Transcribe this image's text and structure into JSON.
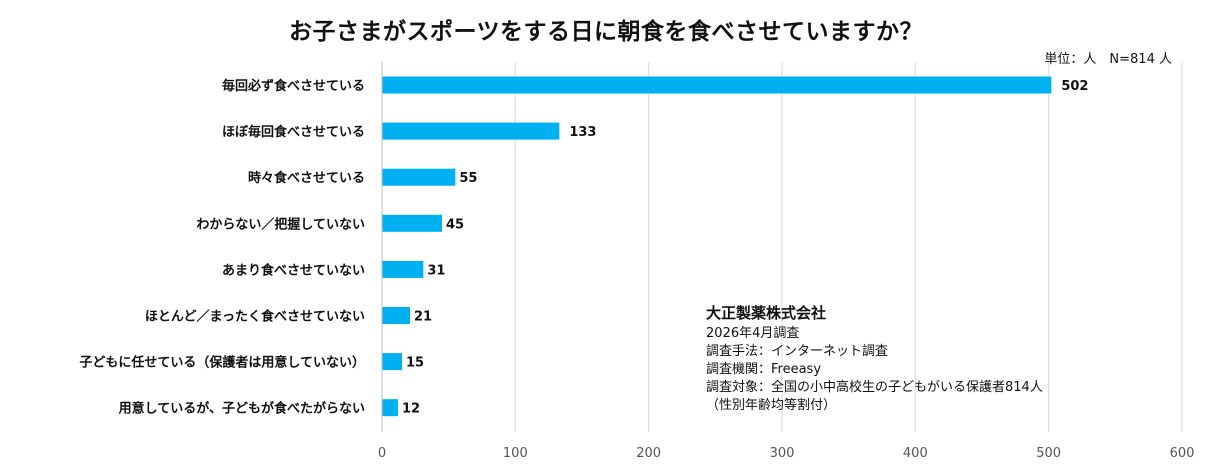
{
  "chart_data": {
    "type": "bar",
    "orientation": "horizontal",
    "title": "お子さまがスポーツをする日に朝食を食べさせていますか？",
    "unit_note": "単位：人　N=814 人",
    "categories": [
      "毎回必ず食べさせている",
      "ほぼ毎回食べさせている",
      "時々食べさせている",
      "わからない／把握していない",
      "あまり食べさせていない",
      "ほとんど／まったく食べさせていない",
      "子どもに任せている（保護者は用意していない）",
      "用意しているが、子どもが食べたがらない"
    ],
    "values": [
      502,
      133,
      55,
      45,
      31,
      21,
      15,
      12
    ],
    "xlim": [
      0,
      600
    ],
    "xticks": [
      "0",
      "100",
      "200",
      "300",
      "400",
      "500",
      "600"
    ],
    "grid": true,
    "bar_color": "#00b0f0"
  },
  "note": {
    "company": "大正製薬株式会社",
    "lines": [
      "2026年4月調査",
      "調査手法：インターネット調査",
      "調査機関：Freeasy",
      "調査対象：全国の小中高校生の子どもがいる保護者814人",
      "（性別年齢均等割付）"
    ]
  }
}
